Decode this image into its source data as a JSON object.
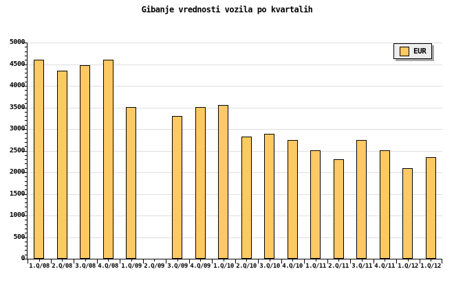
{
  "title": "Gibanje vrednosti vozila po kvartalih",
  "legend": {
    "label": "EUR"
  },
  "colors": {
    "bar_fill": "#FDC964",
    "bar_border": "#000000",
    "grid": "#DEDEDE",
    "axis": "#000000",
    "legend_bg": "#EDEDED",
    "legend_shadow": "#A8A8A8",
    "background": "#FFFFFF"
  },
  "chart_data": {
    "type": "bar",
    "title": "Gibanje vrednosti vozila po kvartalih",
    "categories": [
      "1.Q/08",
      "2.Q/08",
      "3.Q/08",
      "4.Q/08",
      "1.Q/09",
      "2.Q/09",
      "3.Q/09",
      "4.Q/09",
      "1.Q/10",
      "2.Q/10",
      "3.Q/10",
      "4.Q/10",
      "1.Q/11",
      "2.Q/11",
      "3.Q/11",
      "4.Q/11",
      "1.Q/12",
      "1.Q/12"
    ],
    "series": [
      {
        "name": "EUR",
        "values": [
          4600,
          4350,
          4480,
          4600,
          3500,
          null,
          3300,
          3500,
          3550,
          2820,
          2890,
          2750,
          2500,
          2300,
          2750,
          2500,
          2100,
          2350
        ]
      }
    ],
    "xlabel": "",
    "ylabel": "",
    "ylim": [
      0,
      5000
    ],
    "ytick_step": 500,
    "ytick_minor_step": 100,
    "yticks": [
      0,
      500,
      1000,
      1500,
      2000,
      2500,
      3000,
      3500,
      4000,
      4500,
      5000
    ],
    "grid": "horizontal-major",
    "legend_position": "top-right",
    "missing_categories": [
      "2.Q/09"
    ]
  }
}
